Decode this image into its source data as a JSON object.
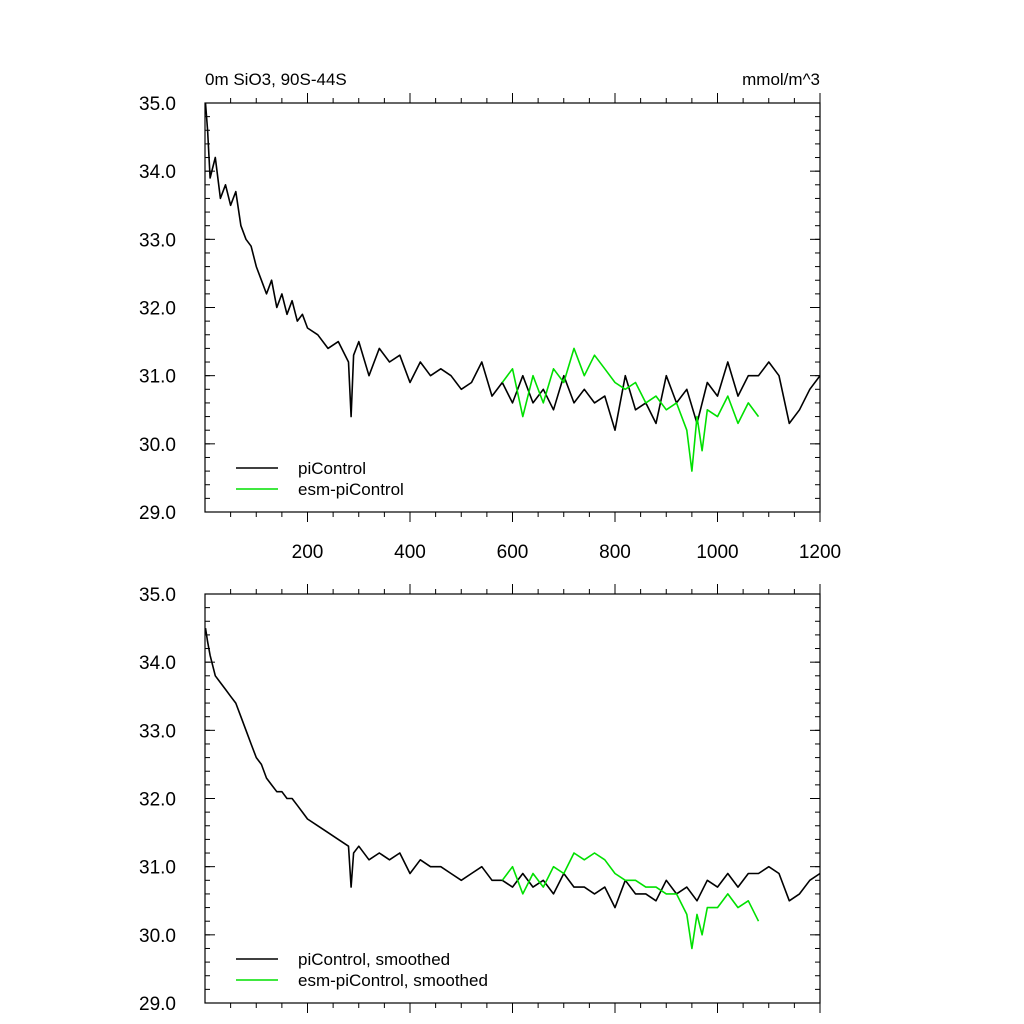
{
  "chart_data": [
    {
      "type": "line",
      "title_left": "0m SiO3, 90S-44S",
      "title_right": "mmol/m^3",
      "xlim": [
        0,
        1200
      ],
      "ylim": [
        29.0,
        35.0
      ],
      "xticks": [
        200,
        400,
        600,
        800,
        1000,
        1200
      ],
      "xtick_labels": [
        "200",
        "400",
        "600",
        "800",
        "1000",
        "1200"
      ],
      "yticks": [
        29.0,
        30.0,
        31.0,
        32.0,
        33.0,
        34.0,
        35.0
      ],
      "ytick_labels": [
        "29.0",
        "30.0",
        "31.0",
        "32.0",
        "33.0",
        "34.0",
        "35.0"
      ],
      "legend": "bottom-left",
      "series": [
        {
          "name": "piControl",
          "color": "#000000",
          "x": [
            1,
            5,
            10,
            20,
            30,
            40,
            50,
            60,
            70,
            80,
            90,
            100,
            110,
            120,
            130,
            140,
            150,
            160,
            170,
            180,
            190,
            200,
            220,
            240,
            260,
            280,
            285,
            290,
            300,
            320,
            340,
            360,
            380,
            400,
            420,
            440,
            460,
            480,
            500,
            520,
            540,
            560,
            580,
            600,
            620,
            640,
            660,
            680,
            700,
            720,
            740,
            760,
            780,
            800,
            820,
            840,
            860,
            880,
            900,
            920,
            940,
            960,
            980,
            1000,
            1020,
            1040,
            1060,
            1080,
            1100,
            1120,
            1140,
            1160,
            1180,
            1200
          ],
          "y": [
            35.0,
            34.6,
            33.9,
            34.2,
            33.6,
            33.8,
            33.5,
            33.7,
            33.2,
            33.0,
            32.9,
            32.6,
            32.4,
            32.2,
            32.4,
            32.0,
            32.2,
            31.9,
            32.1,
            31.8,
            31.9,
            31.7,
            31.6,
            31.4,
            31.5,
            31.2,
            30.4,
            31.3,
            31.5,
            31.0,
            31.4,
            31.2,
            31.3,
            30.9,
            31.2,
            31.0,
            31.1,
            31.0,
            30.8,
            30.9,
            31.2,
            30.7,
            30.9,
            30.6,
            31.0,
            30.6,
            30.8,
            30.5,
            31.0,
            30.6,
            30.8,
            30.6,
            30.7,
            30.2,
            31.0,
            30.5,
            30.6,
            30.3,
            31.0,
            30.6,
            30.8,
            30.3,
            30.9,
            30.7,
            31.2,
            30.7,
            31.0,
            31.0,
            31.2,
            31.0,
            30.3,
            30.5,
            30.8,
            31.0
          ]
        },
        {
          "name": "esm-piControl",
          "color": "#00e000",
          "x": [
            580,
            600,
            620,
            640,
            660,
            680,
            700,
            720,
            740,
            760,
            780,
            800,
            820,
            840,
            860,
            880,
            900,
            920,
            940,
            950,
            960,
            970,
            980,
            1000,
            1020,
            1040,
            1060,
            1080
          ],
          "y": [
            30.9,
            31.1,
            30.4,
            31.0,
            30.6,
            31.1,
            30.9,
            31.4,
            31.0,
            31.3,
            31.1,
            30.9,
            30.8,
            30.9,
            30.6,
            30.7,
            30.5,
            30.6,
            30.2,
            29.6,
            30.4,
            29.9,
            30.5,
            30.4,
            30.7,
            30.3,
            30.6,
            30.4
          ]
        }
      ]
    },
    {
      "type": "line",
      "xlim": [
        0,
        1200
      ],
      "ylim": [
        29.0,
        35.0
      ],
      "yticks": [
        29.0,
        30.0,
        31.0,
        32.0,
        33.0,
        34.0,
        35.0
      ],
      "ytick_labels": [
        "29.0",
        "30.0",
        "31.0",
        "32.0",
        "33.0",
        "34.0",
        "35.0"
      ],
      "legend": "bottom-left",
      "series": [
        {
          "name": "piControl, smoothed",
          "color": "#000000",
          "x": [
            1,
            5,
            10,
            20,
            30,
            40,
            50,
            60,
            70,
            80,
            90,
            100,
            110,
            120,
            130,
            140,
            150,
            160,
            170,
            180,
            190,
            200,
            220,
            240,
            260,
            280,
            285,
            290,
            300,
            320,
            340,
            360,
            380,
            400,
            420,
            440,
            460,
            480,
            500,
            520,
            540,
            560,
            580,
            600,
            620,
            640,
            660,
            680,
            700,
            720,
            740,
            760,
            780,
            800,
            820,
            840,
            860,
            880,
            900,
            920,
            940,
            960,
            980,
            1000,
            1020,
            1040,
            1060,
            1080,
            1100,
            1120,
            1140,
            1160,
            1180,
            1200
          ],
          "y": [
            34.5,
            34.3,
            34.1,
            33.8,
            33.7,
            33.6,
            33.5,
            33.4,
            33.2,
            33.0,
            32.8,
            32.6,
            32.5,
            32.3,
            32.2,
            32.1,
            32.1,
            32.0,
            32.0,
            31.9,
            31.8,
            31.7,
            31.6,
            31.5,
            31.4,
            31.3,
            30.7,
            31.2,
            31.3,
            31.1,
            31.2,
            31.1,
            31.2,
            30.9,
            31.1,
            31.0,
            31.0,
            30.9,
            30.8,
            30.9,
            31.0,
            30.8,
            30.8,
            30.7,
            30.9,
            30.7,
            30.8,
            30.6,
            30.9,
            30.7,
            30.7,
            30.6,
            30.7,
            30.4,
            30.8,
            30.6,
            30.6,
            30.5,
            30.8,
            30.6,
            30.7,
            30.5,
            30.8,
            30.7,
            30.9,
            30.7,
            30.9,
            30.9,
            31.0,
            30.9,
            30.5,
            30.6,
            30.8,
            30.9
          ]
        },
        {
          "name": "esm-piControl, smoothed",
          "color": "#00e000",
          "x": [
            580,
            600,
            620,
            640,
            660,
            680,
            700,
            720,
            740,
            760,
            780,
            800,
            820,
            840,
            860,
            880,
            900,
            920,
            940,
            950,
            960,
            970,
            980,
            1000,
            1020,
            1040,
            1060,
            1080
          ],
          "y": [
            30.8,
            31.0,
            30.6,
            30.9,
            30.7,
            31.0,
            30.9,
            31.2,
            31.1,
            31.2,
            31.1,
            30.9,
            30.8,
            30.8,
            30.7,
            30.7,
            30.6,
            30.6,
            30.3,
            29.8,
            30.3,
            30.0,
            30.4,
            30.4,
            30.6,
            30.4,
            30.5,
            30.2
          ]
        }
      ]
    }
  ]
}
